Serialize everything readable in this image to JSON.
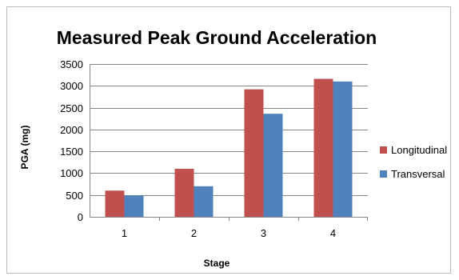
{
  "chart_data": {
    "type": "bar",
    "title": "Measured Peak Ground Acceleration",
    "xlabel": "Stage",
    "ylabel": "PGA (mg)",
    "categories": [
      "1",
      "2",
      "3",
      "4"
    ],
    "ylim": [
      0,
      3500
    ],
    "yticks": [
      0,
      500,
      1000,
      1500,
      2000,
      2500,
      3000,
      3500
    ],
    "grid": true,
    "legend_position": "right",
    "series": [
      {
        "name": "Longitudinal",
        "color": "#c0504d",
        "values": [
          600,
          1100,
          2920,
          3160
        ]
      },
      {
        "name": "Transversal",
        "color": "#4f81bd",
        "values": [
          490,
          700,
          2360,
          3100
        ]
      }
    ]
  }
}
